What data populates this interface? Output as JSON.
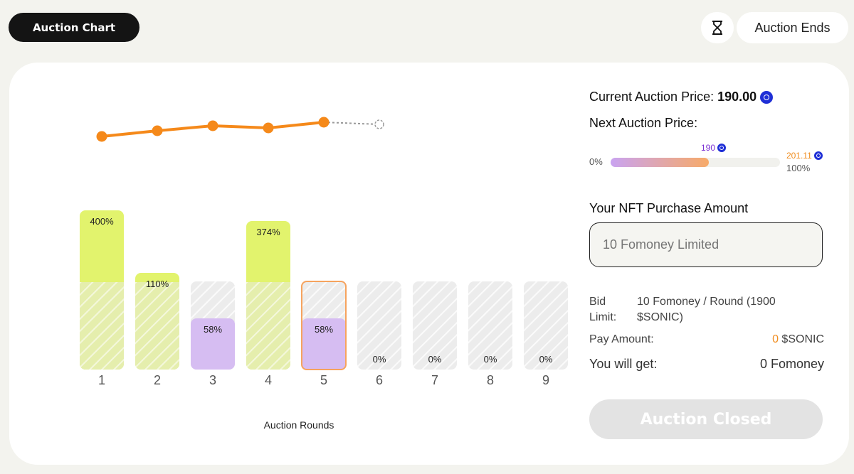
{
  "header": {
    "title": "Auction Chart",
    "auction_ends_label": "Auction Ends",
    "hourglass_icon": "hourglass-icon"
  },
  "chart_data": {
    "type": "bar",
    "xlabel": "Auction Rounds",
    "categories": [
      "1",
      "2",
      "3",
      "4",
      "5",
      "6",
      "7",
      "8",
      "9"
    ],
    "values": [
      400,
      110,
      58,
      374,
      58,
      0,
      0,
      0,
      0
    ],
    "value_labels": [
      "400%",
      "110%",
      "58%",
      "374%",
      "58%",
      "0%",
      "0%",
      "0%",
      "0%"
    ],
    "bar_colors": [
      "#e2f36d",
      "#e2f36d",
      "#d6bdf2",
      "#e2f36d",
      "#d6bdf2",
      "#ececec",
      "#ececec",
      "#ececec",
      "#ececec"
    ],
    "highlighted_round": "5",
    "price_line": {
      "color": "#f5891a",
      "points": [
        1,
        2,
        3,
        4,
        5
      ],
      "next_point_dashed": 6
    }
  },
  "panel": {
    "current_price_label": "Current Auction Price:",
    "current_price_value": "190.00",
    "next_price_label": "Next Auction Price:",
    "progress": {
      "start_label": "0%",
      "end_label": "100%",
      "current_value": "190",
      "max_value": "201.11",
      "fill_fraction": 0.58
    },
    "purchase_label": "Your NFT Purchase Amount",
    "purchase_placeholder": "10 Fomoney Limited",
    "bid_limit_label": "Bid Limit:",
    "bid_limit_value": "10 Fomoney / Round (1900 $SONIC)",
    "pay_amount_label": "Pay Amount:",
    "pay_amount_number": "0",
    "pay_amount_unit": " $SONIC",
    "you_get_label": "You will get:",
    "you_get_value": "0 Fomoney",
    "closed_button_label": "Auction Closed"
  },
  "colors": {
    "accent_orange": "#f5891a",
    "green_bar": "#e2f36d",
    "purple_bar": "#d6bdf2",
    "coin_blue": "#1f2fd6"
  }
}
